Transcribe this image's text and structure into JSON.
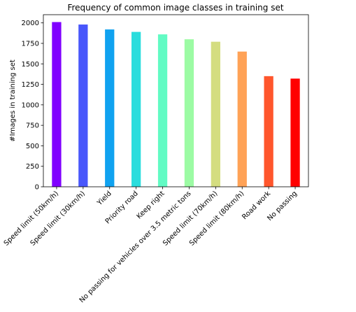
{
  "chart_data": {
    "type": "bar",
    "title": "Frequency of common image classes in training set",
    "xlabel": "",
    "ylabel": "#Images in training set",
    "categories": [
      "Speed limit (50km/h)",
      "Speed limit (30km/h)",
      "Yield",
      "Priority road",
      "Keep right",
      "No passing for vehicles over 3.5 metric tons",
      "Speed limit (70km/h)",
      "Speed limit (80km/h)",
      "Road work",
      "No passing"
    ],
    "values": [
      2010,
      1980,
      1920,
      1890,
      1860,
      1800,
      1770,
      1650,
      1350,
      1320
    ],
    "colors": [
      "#8000ff",
      "#4856fb",
      "#10a2f0",
      "#2adddd",
      "#62fbc4",
      "#9cfba4",
      "#d4dd80",
      "#ffa256",
      "#ff562c",
      "#ff0000"
    ],
    "ylim": [
      0,
      2100
    ],
    "yticks": [
      0,
      250,
      500,
      750,
      1000,
      1250,
      1500,
      1750,
      2000
    ],
    "grid": false,
    "legend": "none"
  }
}
